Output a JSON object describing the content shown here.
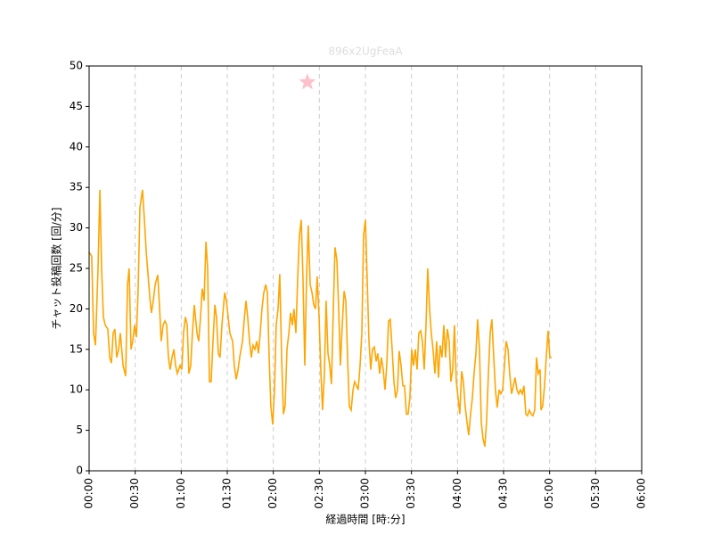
{
  "chart_data": {
    "type": "line",
    "title": "896x2UgFeaA",
    "title_color": "#dddddd",
    "xlabel": "経過時間 [時:分]",
    "ylabel": "チャット投稿回数 [回/分]",
    "xlim": [
      0,
      360
    ],
    "ylim": [
      0,
      50
    ],
    "xticks": [
      {
        "value": 0,
        "label": "00:00"
      },
      {
        "value": 30,
        "label": "00:30"
      },
      {
        "value": 60,
        "label": "01:00"
      },
      {
        "value": 90,
        "label": "01:30"
      },
      {
        "value": 120,
        "label": "02:00"
      },
      {
        "value": 150,
        "label": "02:30"
      },
      {
        "value": 180,
        "label": "03:00"
      },
      {
        "value": 210,
        "label": "03:30"
      },
      {
        "value": 240,
        "label": "04:00"
      },
      {
        "value": 270,
        "label": "04:30"
      },
      {
        "value": 300,
        "label": "05:00"
      },
      {
        "value": 330,
        "label": "05:30"
      },
      {
        "value": 360,
        "label": "06:00"
      }
    ],
    "yticks": [
      0,
      5,
      10,
      15,
      20,
      25,
      30,
      35,
      40,
      45,
      50
    ],
    "xgrid": true,
    "color": "#ffa500",
    "x": [
      0,
      1.7,
      2.9,
      4.1,
      5.8,
      7,
      8.1,
      9.3,
      10.5,
      12.2,
      13.4,
      14.5,
      15.7,
      16.8,
      18,
      19.2,
      20.3,
      22.1,
      23.8,
      25,
      26.1,
      27.3,
      28.4,
      29.6,
      30.8,
      31.9,
      33.1,
      34.8,
      36,
      37.2,
      38.9,
      39.5,
      40.6,
      41.8,
      43,
      44.7,
      45.9,
      47,
      48.2,
      49.4,
      50.5,
      51.7,
      52.8,
      54,
      55.2,
      56.3,
      57.5,
      59.2,
      60.4,
      61.5,
      62.7,
      63.9,
      65,
      66.2,
      67.3,
      68.5,
      70.3,
      71.4,
      72.6,
      73.7,
      74.9,
      76.1,
      77.2,
      78.4,
      79.5,
      80.7,
      81.9,
      83,
      84.2,
      85.3,
      86.5,
      88.3,
      89.4,
      90.6,
      91.7,
      93.5,
      94.6,
      95.8,
      97,
      98.1,
      99.9,
      101,
      102.2,
      103.3,
      104.5,
      105.7,
      106.8,
      108,
      109.2,
      110.3,
      111.5,
      112.6,
      113.8,
      115,
      116.1,
      117.3,
      118.4,
      119.6,
      120.8,
      121.9,
      123.1,
      124.2,
      125.4,
      126.6,
      127.7,
      128.9,
      130.1,
      131.2,
      132.4,
      133.5,
      134.7,
      135.9,
      137,
      138.2,
      139.3,
      140.5,
      141.7,
      142.8,
      144,
      145.2,
      146.3,
      147.5,
      148.6,
      149.8,
      151,
      152.1,
      153.3,
      154.4,
      155.6,
      156.8,
      157.9,
      159.1,
      160.2,
      161.4,
      162.6,
      163.7,
      164.9,
      166.1,
      167.2,
      168.4,
      169.5,
      170.7,
      171.9,
      173,
      174.2,
      175.3,
      176.5,
      177.7,
      178.8,
      180,
      181.1,
      182.3,
      183.5,
      184.6,
      185.8,
      187,
      188.1,
      189.3,
      190.4,
      191.6,
      192.8,
      193.9,
      195.1,
      196.2,
      197.4,
      198.6,
      199.7,
      200.9,
      202,
      203.2,
      204.4,
      205.5,
      206.7,
      207.8,
      209,
      210.2,
      211.3,
      212.5,
      213.7,
      214.8,
      216,
      217.1,
      218.3,
      219.5,
      220.6,
      221.8,
      222.9,
      224.1,
      225.3,
      226.4,
      227.6,
      228.7,
      229.9,
      231.1,
      232.2,
      233.4,
      234.6,
      235.7,
      236.9,
      238,
      239.2,
      240.4,
      241.5,
      242.7,
      243.8,
      245,
      246.2,
      247.3,
      248.5,
      249.7,
      250.8,
      252,
      253.1,
      254.3,
      255.5,
      256.6,
      257.8,
      258.9,
      260.1,
      261.3,
      262.4,
      263.6,
      264.7,
      265.9,
      267.1,
      268.2,
      269.4,
      270.6,
      271.7,
      272.9,
      274,
      275.2,
      276.4,
      277.5,
      278.7,
      279.8,
      281,
      282.2,
      283.3,
      284.5,
      285.6,
      286.8,
      288,
      289.1,
      290.3,
      291.5,
      292.6,
      293.8,
      294.4,
      295.5,
      296.7,
      297.8,
      299,
      300.2,
      301.3
    ],
    "values": [
      27,
      26.5,
      17,
      15.5,
      25,
      34.7,
      25,
      19,
      18,
      17.5,
      14,
      13.3,
      17,
      17.5,
      14,
      15,
      17,
      13,
      11.7,
      23,
      25,
      15,
      16,
      18,
      16.5,
      22,
      32.5,
      34.7,
      31,
      27,
      23,
      21.5,
      19.5,
      21,
      23,
      24.2,
      20,
      16,
      18,
      18.5,
      18,
      14,
      12.5,
      14,
      15,
      13,
      12,
      13,
      12.5,
      17,
      19,
      18,
      12,
      13,
      17,
      20.5,
      17,
      16,
      19,
      22.5,
      21,
      28.3,
      25,
      11,
      11,
      16,
      20.5,
      19,
      14.5,
      14,
      18,
      22,
      21,
      19,
      17,
      16,
      13,
      11.3,
      12.5,
      14,
      16,
      18.5,
      21,
      19,
      16,
      14,
      15.5,
      15,
      16,
      14.5,
      17,
      20,
      22,
      23,
      22,
      14,
      8,
      5.7,
      10,
      18,
      20,
      24.3,
      14,
      7,
      8,
      15,
      17,
      19.5,
      18,
      20,
      17,
      24,
      29,
      31,
      24,
      13,
      24,
      30.3,
      23,
      22,
      20.5,
      20,
      24,
      19,
      12,
      7.5,
      12,
      21,
      14.5,
      13,
      10.7,
      20,
      27.6,
      26,
      20,
      13,
      18,
      22.2,
      21,
      14,
      8,
      7.5,
      10,
      11,
      10.5,
      10,
      13,
      17,
      29,
      31,
      24,
      16,
      12.5,
      15,
      15.3,
      13.5,
      14.5,
      12,
      14,
      12.5,
      10,
      13,
      18.5,
      18.7,
      15,
      11,
      9,
      10,
      14.8,
      13,
      10.5,
      10.5,
      7,
      7,
      9,
      15,
      13,
      15,
      12.5,
      17,
      17.3,
      16,
      12.5,
      18,
      25,
      20,
      17,
      15,
      12,
      16,
      11.5,
      15.5,
      14,
      18,
      14,
      17.5,
      16,
      11,
      12.5,
      18,
      11,
      9,
      7,
      12.3,
      11,
      8,
      6,
      4.4,
      7,
      9,
      12,
      14.5,
      18.7,
      15,
      6,
      4,
      3,
      6,
      12,
      17,
      18.7,
      14,
      10,
      7.8,
      10,
      9.5,
      10,
      13,
      16,
      15,
      12,
      9.5,
      10.5,
      11.5,
      10,
      9.5,
      10,
      9.5,
      10.5,
      7,
      6.8,
      7.5,
      7,
      6.8,
      7.5,
      14,
      12,
      12.5,
      7.5,
      8,
      10.5,
      14,
      17.3,
      14,
      14
    ],
    "highlight": {
      "x": 142.2,
      "y": 48,
      "marker": "star",
      "color": "#ffc0cb"
    }
  }
}
